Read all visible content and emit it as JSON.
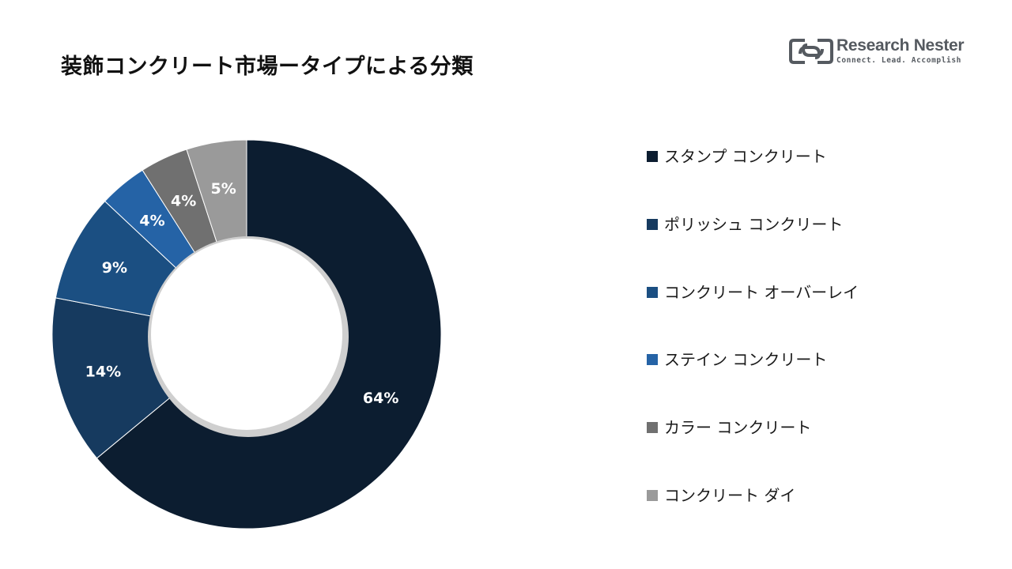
{
  "header": {
    "title": "装飾コンクリート市場ータイプによる分類"
  },
  "logo": {
    "name": "Research Nester",
    "tagline": "Connect. Lead. Accomplish",
    "color": "#555a60"
  },
  "chart_data": {
    "type": "pie",
    "donut": true,
    "title": "装飾コンクリート市場ータイプによる分類",
    "legend_position": "right",
    "series": [
      {
        "name": "スタンプ コンクリート",
        "value": 64,
        "label": "64%",
        "color": "#0c1d30"
      },
      {
        "name": "ポリッシュ コンクリート",
        "value": 14,
        "label": "14%",
        "color": "#163a5f"
      },
      {
        "name": "コンクリート オーバーレイ",
        "value": 9,
        "label": "9%",
        "color": "#1b4f82"
      },
      {
        "name": "ステイン コンクリート",
        "value": 4,
        "label": "4%",
        "color": "#2563a6"
      },
      {
        "name": "カラー コンクリート",
        "value": 4,
        "label": "4%",
        "color": "#707070"
      },
      {
        "name": "コンクリート ダイ",
        "value": 5,
        "label": "5%",
        "color": "#9a9a9a"
      }
    ]
  }
}
